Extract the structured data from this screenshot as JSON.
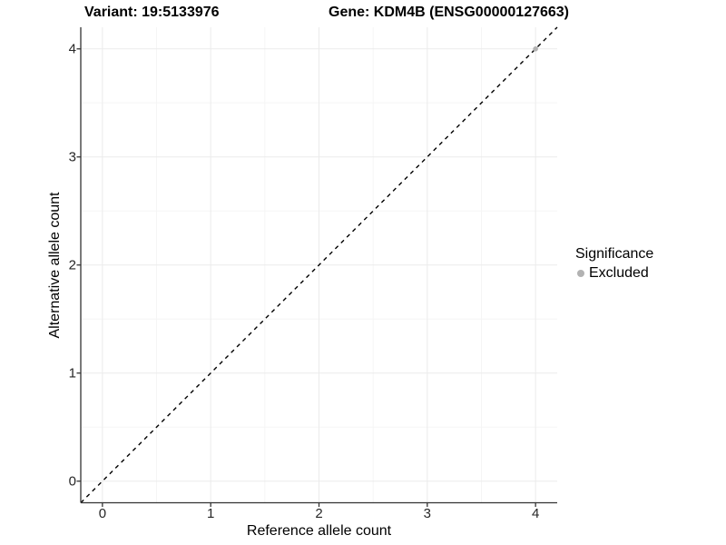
{
  "header": {
    "variant_title": "Variant: 19:5133976",
    "gene_title": "Gene: KDM4B (ENSG00000127663)"
  },
  "legend": {
    "title": "Significance",
    "items": [
      {
        "label": "Excluded",
        "color": "#b2b2b2"
      }
    ]
  },
  "chart_data": {
    "type": "scatter",
    "title": "Variant: 19:5133976    Gene: KDM4B (ENSG00000127663)",
    "xlabel": "Reference allele count",
    "ylabel": "Alternative allele count",
    "xlim": [
      -0.2,
      4.2
    ],
    "ylim": [
      -0.2,
      4.2
    ],
    "x_ticks": [
      0,
      1,
      2,
      3,
      4
    ],
    "y_ticks": [
      0,
      1,
      2,
      3,
      4
    ],
    "x_minor_ticks": [
      0.5,
      1.5,
      2.5,
      3.5
    ],
    "y_minor_ticks": [
      0.5,
      1.5,
      2.5,
      3.5
    ],
    "grid": "major+minor",
    "legend_position": "right",
    "series": [
      {
        "name": "Excluded",
        "color": "#b2b2b2",
        "points": [
          {
            "x": 4,
            "y": 4
          }
        ]
      }
    ],
    "reference_line": {
      "style": "dashed",
      "color": "#000000",
      "from": {
        "x": -0.2,
        "y": -0.2
      },
      "to": {
        "x": 4.2,
        "y": 4.2
      }
    }
  },
  "colors": {
    "background": "#ffffff",
    "axis_line": "#333333",
    "tick_text": "#262626",
    "grid_major": "#ebebeb",
    "grid_minor": "#f5f5f5",
    "point": "#b2b2b2",
    "reference_line": "#000000"
  }
}
